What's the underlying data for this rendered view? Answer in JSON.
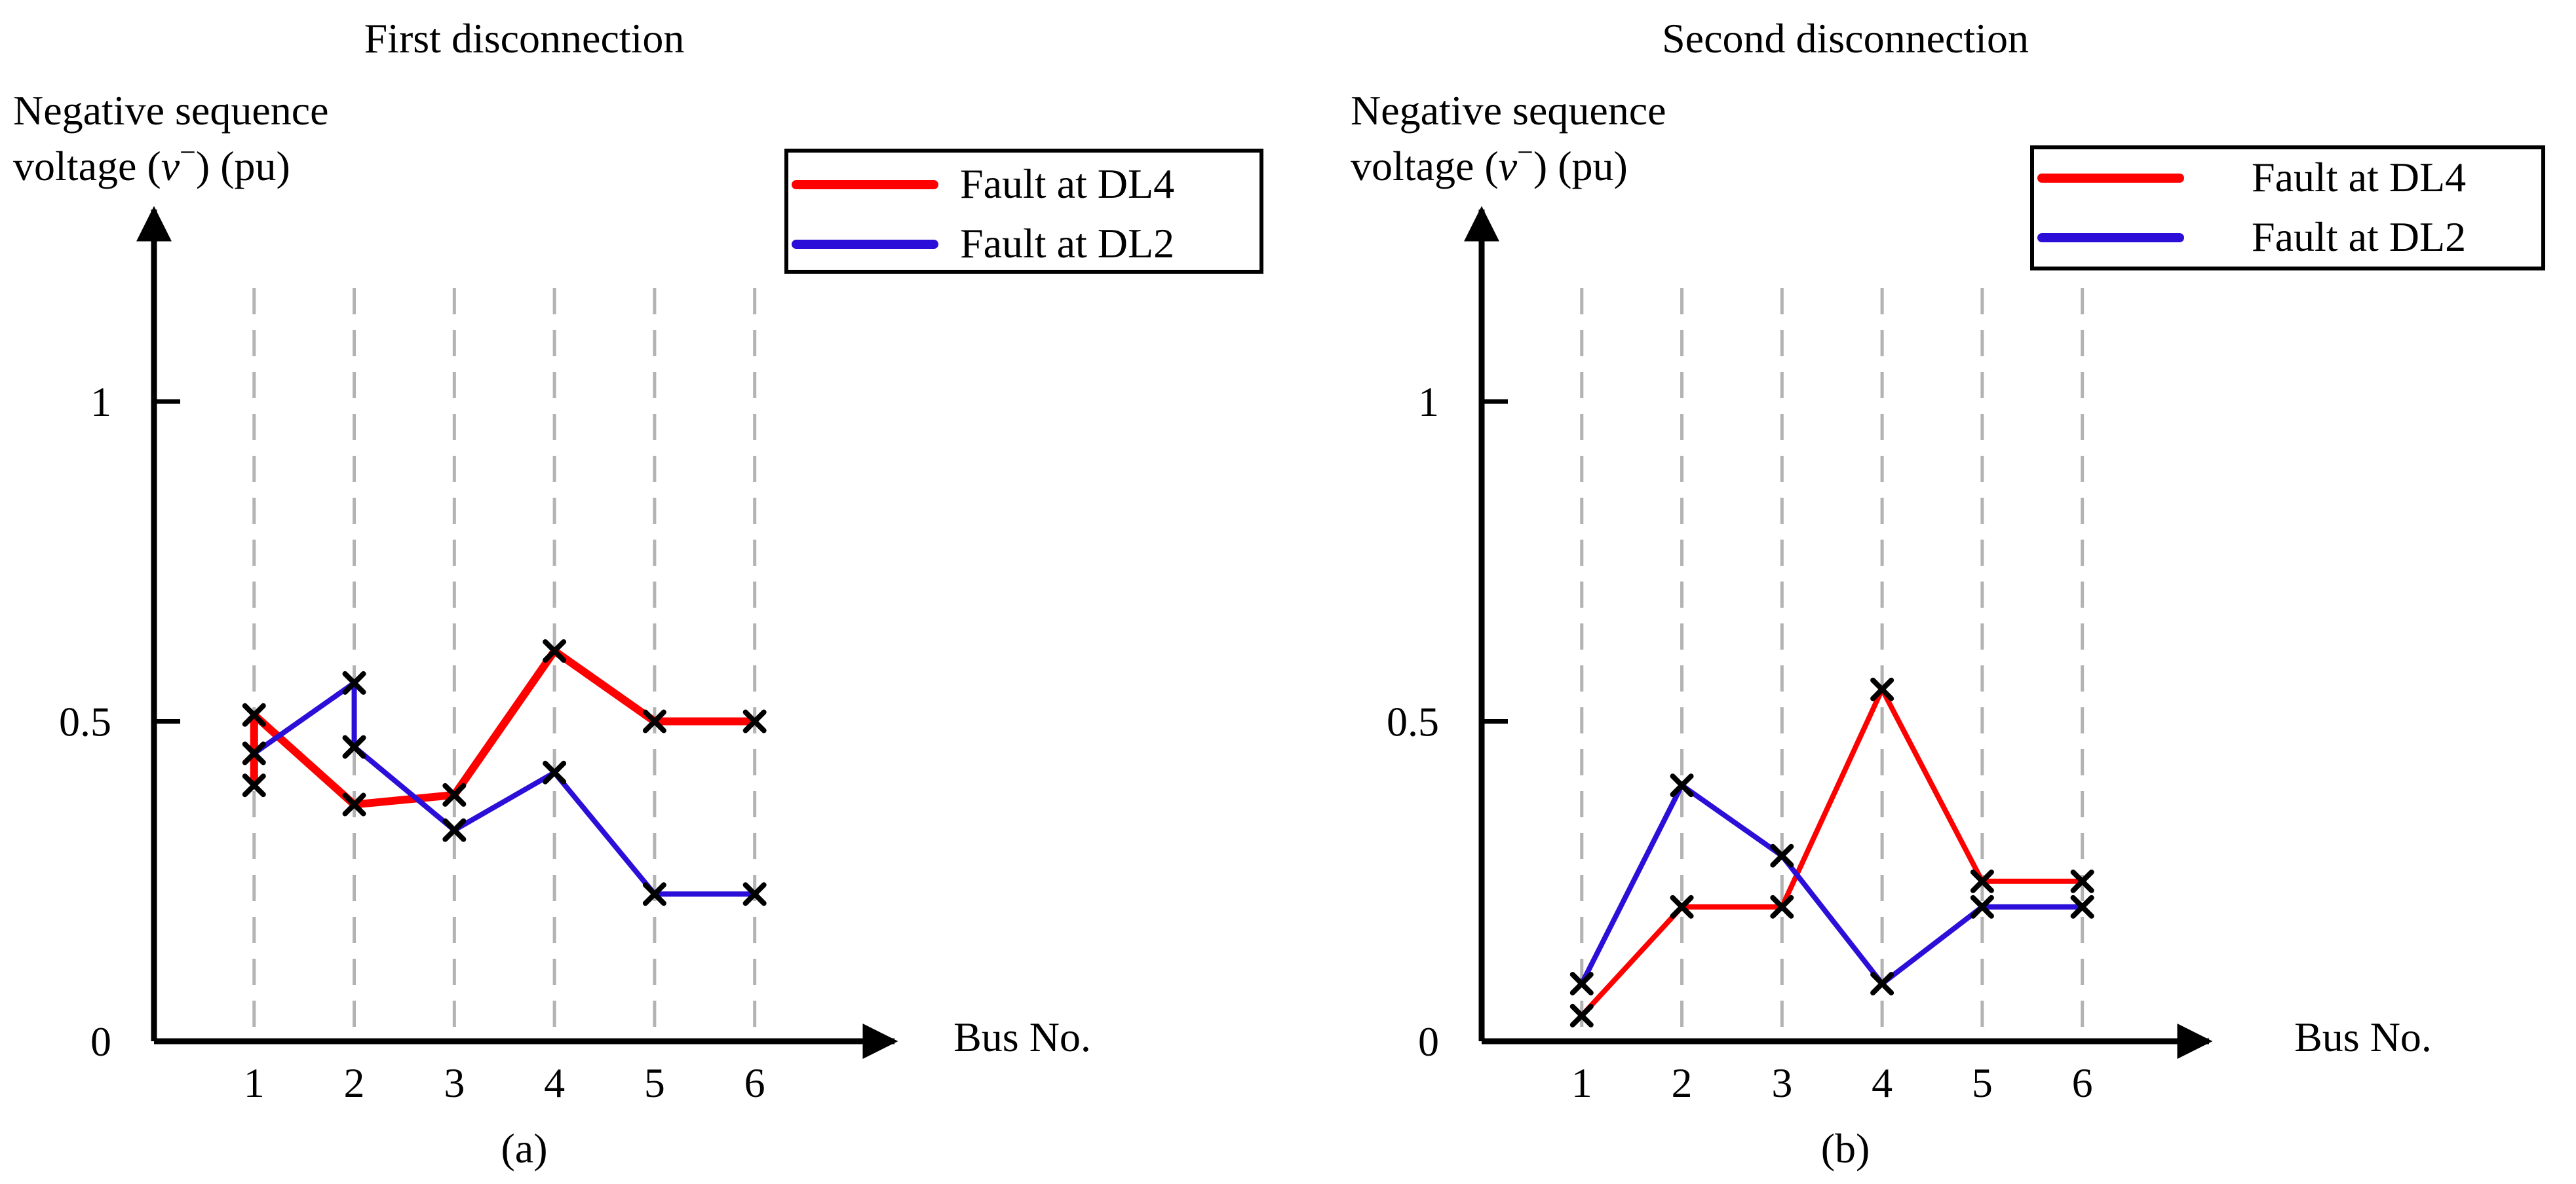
{
  "chart_data": [
    {
      "type": "line",
      "panel_id": "a",
      "title": "First disconnection",
      "ylabel_line1": "Negative sequence",
      "ylabel_line2": "voltage (",
      "ylabel_symbol": "v",
      "ylabel_sup": "−",
      "ylabel_unit": ") (pu)",
      "xlabel": "Bus No.",
      "caption": "(a)",
      "categories": [
        "1",
        "2",
        "3",
        "4",
        "5",
        "6"
      ],
      "x_ticks": [
        1,
        2,
        3,
        4,
        5,
        6
      ],
      "x_tick_labels": [
        "1",
        "2",
        "3",
        "4",
        "5",
        "6"
      ],
      "y_ticks": [
        0,
        0.5,
        1
      ],
      "y_tick_labels": [
        "0",
        "0.5",
        "1"
      ],
      "xlim": [
        0,
        7.2
      ],
      "ylim": [
        0,
        1.3
      ],
      "grid": "dashed vertical lines at each bus",
      "legend_position": "top-right",
      "series": [
        {
          "name": "Fault at DL4",
          "color": "#ff0000",
          "line_weight": "thick",
          "points": [
            [
              1,
              0.4
            ],
            [
              1,
              0.51
            ],
            [
              2,
              0.37
            ],
            [
              3,
              0.385
            ],
            [
              4,
              0.61
            ],
            [
              5,
              0.5
            ],
            [
              6,
              0.5
            ]
          ]
        },
        {
          "name": "Fault at DL2",
          "color": "#2b0fd9",
          "line_weight": "normal",
          "points": [
            [
              1,
              0.45
            ],
            [
              2,
              0.56
            ],
            [
              2,
              0.46
            ],
            [
              3,
              0.33
            ],
            [
              4,
              0.42
            ],
            [
              5,
              0.23
            ],
            [
              6,
              0.23
            ]
          ]
        }
      ]
    },
    {
      "type": "line",
      "panel_id": "b",
      "title": "Second disconnection",
      "ylabel_line1": "Negative sequence",
      "ylabel_line2": "voltage (",
      "ylabel_symbol": "v",
      "ylabel_sup": "−",
      "ylabel_unit": ") (pu)",
      "xlabel": "Bus No.",
      "caption": "(b)",
      "categories": [
        "1",
        "2",
        "3",
        "4",
        "5",
        "6"
      ],
      "x_ticks": [
        1,
        2,
        3,
        4,
        5,
        6
      ],
      "x_tick_labels": [
        "1",
        "2",
        "3",
        "4",
        "5",
        "6"
      ],
      "y_ticks": [
        0,
        0.5,
        1
      ],
      "y_tick_labels": [
        "0",
        "0.5",
        "1"
      ],
      "xlim": [
        0,
        7.2
      ],
      "ylim": [
        0,
        1.3
      ],
      "grid": "dashed vertical lines at each bus",
      "legend_position": "top-right",
      "series": [
        {
          "name": "Fault at DL4",
          "color": "#ff0000",
          "line_weight": "normal",
          "points": [
            [
              1,
              0.04
            ],
            [
              2,
              0.21
            ],
            [
              3,
              0.21
            ],
            [
              4,
              0.55
            ],
            [
              5,
              0.25
            ],
            [
              6,
              0.25
            ]
          ]
        },
        {
          "name": "Fault at DL2",
          "color": "#2b0fd9",
          "line_weight": "normal",
          "points": [
            [
              1,
              0.09
            ],
            [
              2,
              0.4
            ],
            [
              3,
              0.29
            ],
            [
              4,
              0.09
            ],
            [
              5,
              0.21
            ],
            [
              6,
              0.21
            ]
          ]
        }
      ]
    }
  ]
}
